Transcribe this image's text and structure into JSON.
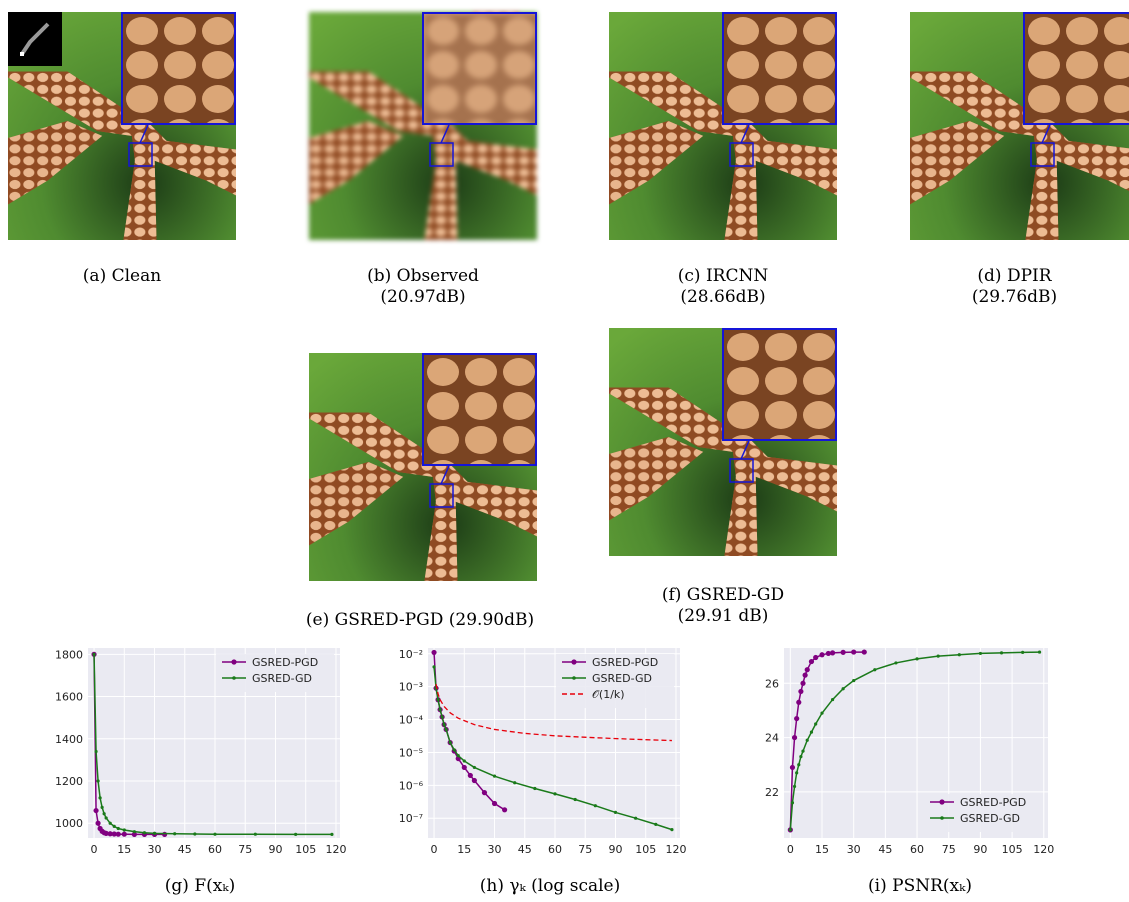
{
  "colors": {
    "pgd": "#800080",
    "gd": "#1a7a1a",
    "ref": "#e8000b",
    "zoom_box": "#1515d8",
    "plot_bg": "#eaeaf2",
    "grid": "#ffffff"
  },
  "panels": [
    {
      "id": "a",
      "caption": "(a) Clean",
      "caption2": ""
    },
    {
      "id": "b",
      "caption": "(b) Observed",
      "caption2": "(20.97dB)"
    },
    {
      "id": "c",
      "caption": "(c) IRCNN",
      "caption2": "(28.66dB)"
    },
    {
      "id": "d",
      "caption": "(d) DPIR",
      "caption2": "(29.76dB)"
    },
    {
      "id": "e",
      "caption": "(e) GSRED-PGD (29.90dB)",
      "caption2": ""
    },
    {
      "id": "f",
      "caption": "(f) GSRED-GD",
      "caption2": "(29.91 dB)"
    }
  ],
  "plot_captions": [
    "(g) F(xₖ)",
    "(h) γₖ (log scale)",
    "(i) PSNR(xₖ)"
  ],
  "chart_data": [
    {
      "type": "line",
      "xticks": [
        "0",
        "15",
        "30",
        "45",
        "60",
        "75",
        "90",
        "105",
        "120"
      ],
      "yticks": [
        "1000",
        "1200",
        "1400",
        "1600",
        "1800"
      ],
      "xlim": [
        -3,
        122
      ],
      "ylim": [
        930,
        1830
      ],
      "legend": "top-right",
      "grid": true,
      "series": [
        {
          "name": "GSRED-PGD",
          "x": [
            0,
            1,
            2,
            3,
            4,
            5,
            6,
            8,
            10,
            12,
            15,
            20,
            25,
            30,
            35
          ],
          "y": [
            1800,
            1060,
            1000,
            975,
            962,
            955,
            952,
            950,
            949,
            948,
            948,
            947,
            947,
            947,
            947
          ]
        },
        {
          "name": "GSRED-GD",
          "x": [
            0,
            1,
            2,
            3,
            4,
            5,
            6,
            8,
            10,
            12,
            15,
            20,
            25,
            30,
            40,
            50,
            60,
            80,
            100,
            118
          ],
          "y": [
            1800,
            1340,
            1200,
            1120,
            1075,
            1045,
            1025,
            1000,
            985,
            975,
            968,
            960,
            955,
            952,
            950,
            949,
            948,
            948,
            947,
            947
          ]
        }
      ]
    },
    {
      "type": "line",
      "yscale": "log",
      "xticks": [
        "0",
        "15",
        "30",
        "45",
        "60",
        "75",
        "90",
        "105",
        "120"
      ],
      "yticks": [
        "10⁻²",
        "10⁻³",
        "10⁻⁴",
        "10⁻⁵",
        "10⁻⁶",
        "10⁻⁷"
      ],
      "xlim": [
        -3,
        122
      ],
      "ylim": [
        2.5e-08,
        0.015
      ],
      "legend": "top-right",
      "grid": true,
      "series": [
        {
          "name": "GSRED-PGD",
          "x": [
            0,
            1,
            2,
            3,
            4,
            5,
            6,
            8,
            10,
            12,
            15,
            18,
            20,
            25,
            30,
            35
          ],
          "y": [
            0.011,
            0.0009,
            0.0004,
            0.0002,
            0.00012,
            7e-05,
            5e-05,
            2e-05,
            1.1e-05,
            6.5e-06,
            3.5e-06,
            2e-06,
            1.4e-06,
            6e-07,
            2.8e-07,
            1.8e-07
          ]
        },
        {
          "name": "GSRED-GD",
          "x": [
            0,
            1,
            2,
            3,
            4,
            5,
            6,
            8,
            10,
            12,
            15,
            20,
            30,
            40,
            50,
            60,
            70,
            80,
            90,
            100,
            110,
            118
          ],
          "y": [
            0.004,
            0.0009,
            0.0004,
            0.0002,
            0.00012,
            7e-05,
            5e-05,
            2e-05,
            1.2e-05,
            8e-06,
            5.5e-06,
            3.5e-06,
            1.9e-06,
            1.2e-06,
            8e-07,
            5.5e-07,
            3.7e-07,
            2.4e-07,
            1.5e-07,
            1e-07,
            6.5e-08,
            4.5e-08
          ]
        },
        {
          "name": "𝒪(1/k)",
          "x": [
            1,
            2,
            3,
            5,
            8,
            12,
            20,
            30,
            45,
            60,
            80,
            100,
            118
          ],
          "y": [
            0.0012,
            0.0006,
            0.0004,
            0.00025,
            0.00016,
            0.00011,
            7e-05,
            5e-05,
            3.8e-05,
            3.2e-05,
            2.8e-05,
            2.5e-05,
            2.3e-05
          ]
        }
      ]
    },
    {
      "type": "line",
      "xticks": [
        "0",
        "15",
        "30",
        "45",
        "60",
        "75",
        "90",
        "105",
        "120"
      ],
      "yticks": [
        "22",
        "24",
        "26"
      ],
      "xlim": [
        -3,
        122
      ],
      "ylim": [
        20.3,
        27.3
      ],
      "legend": "bottom-right",
      "grid": true,
      "series": [
        {
          "name": "GSRED-PGD",
          "x": [
            0,
            1,
            2,
            3,
            4,
            5,
            6,
            7,
            8,
            10,
            12,
            15,
            18,
            20,
            25,
            30,
            35
          ],
          "y": [
            20.6,
            22.9,
            24.0,
            24.7,
            25.3,
            25.7,
            26.0,
            26.3,
            26.5,
            26.8,
            26.95,
            27.05,
            27.1,
            27.12,
            27.14,
            27.15,
            27.15
          ]
        },
        {
          "name": "GSRED-GD",
          "x": [
            0,
            1,
            2,
            3,
            4,
            5,
            6,
            8,
            10,
            12,
            15,
            20,
            25,
            30,
            40,
            50,
            60,
            70,
            80,
            90,
            100,
            110,
            118
          ],
          "y": [
            20.6,
            21.6,
            22.2,
            22.7,
            23.0,
            23.3,
            23.5,
            23.9,
            24.2,
            24.5,
            24.9,
            25.4,
            25.8,
            26.1,
            26.5,
            26.75,
            26.9,
            27.0,
            27.05,
            27.1,
            27.12,
            27.14,
            27.15
          ]
        }
      ]
    }
  ]
}
